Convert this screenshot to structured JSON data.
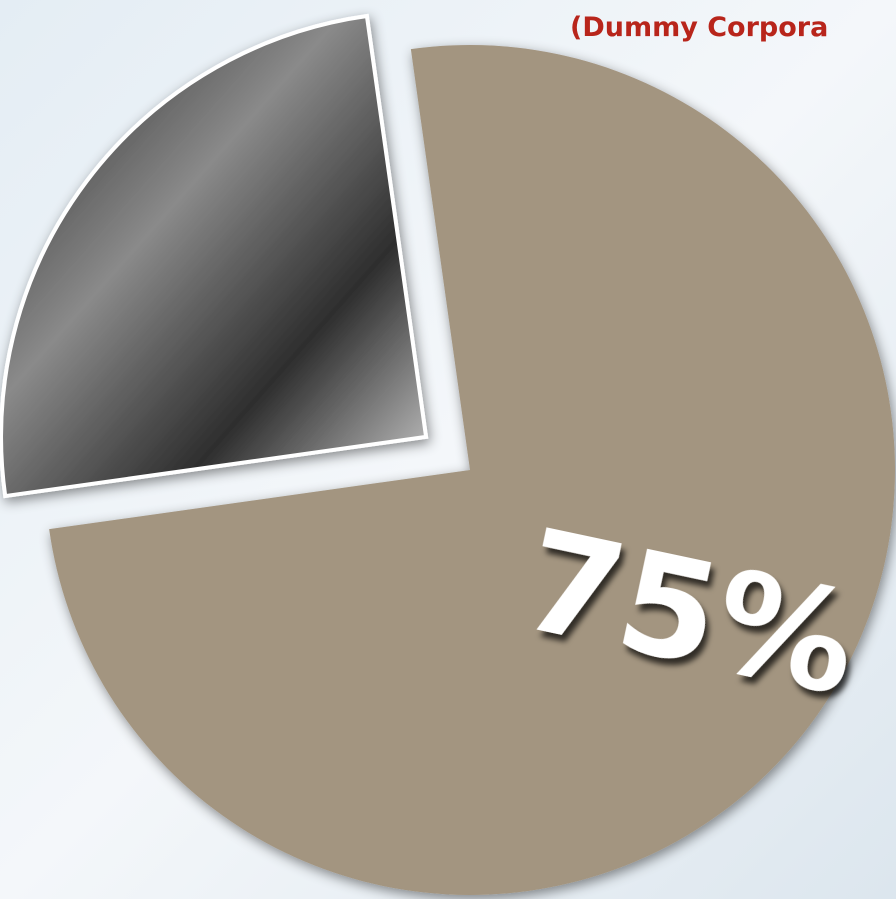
{
  "chart_data": {
    "type": "pie",
    "subtitle": "(Dummy Corpora",
    "categories": [
      null,
      null
    ],
    "values": [
      75,
      25
    ],
    "value_labels": [
      "75%",
      null
    ],
    "colors": [
      "#a39580",
      "#3b3b3b"
    ]
  }
}
